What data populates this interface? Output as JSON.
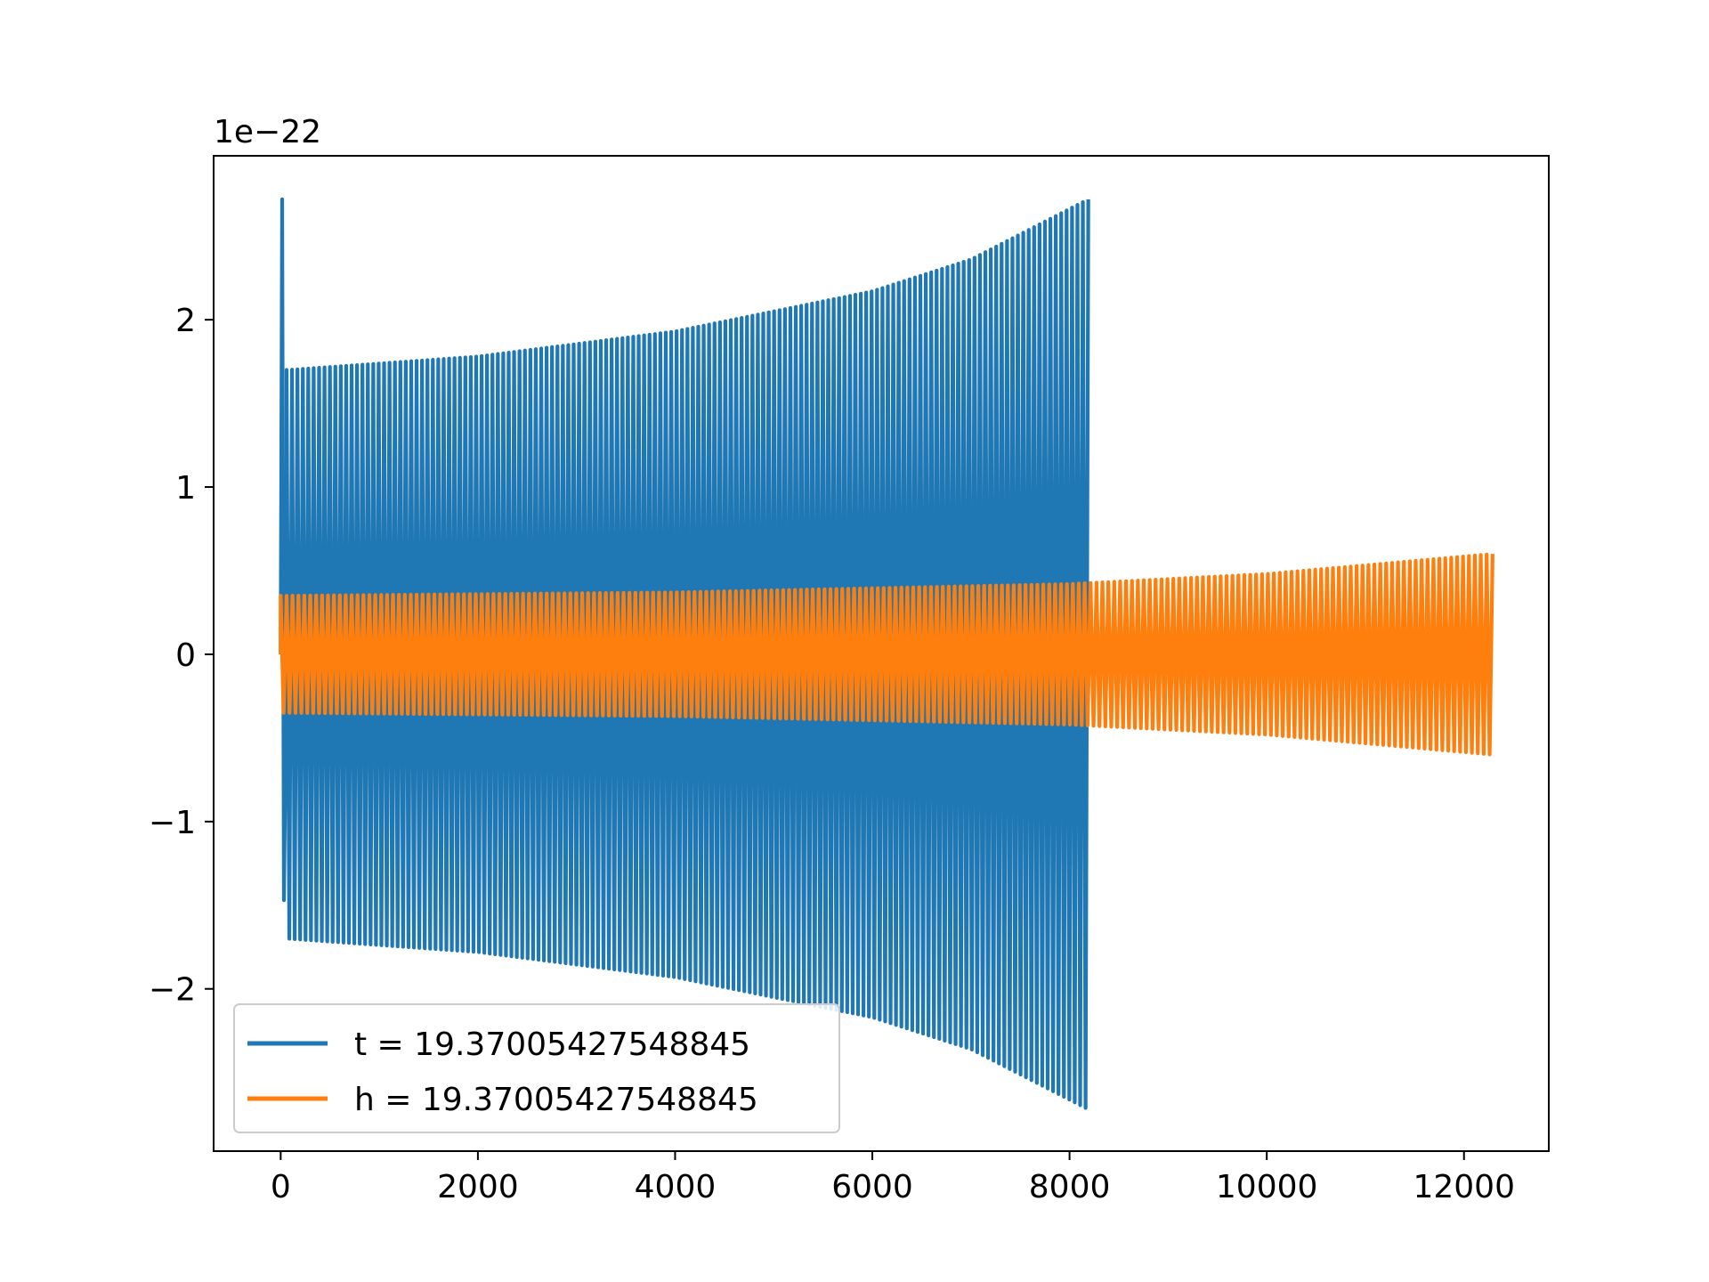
{
  "chart_data": {
    "type": "line",
    "title": "",
    "xlabel": "",
    "ylabel": "",
    "offset_text": "1e−22",
    "xlim": [
      -680,
      12860
    ],
    "ylim": [
      -2.97,
      2.98
    ],
    "x_ticks": [
      {
        "value": 0,
        "label": "0"
      },
      {
        "value": 2000,
        "label": "2000"
      },
      {
        "value": 4000,
        "label": "4000"
      },
      {
        "value": 6000,
        "label": "6000"
      },
      {
        "value": 8000,
        "label": "8000"
      },
      {
        "value": 10000,
        "label": "10000"
      },
      {
        "value": 12000,
        "label": "12000"
      }
    ],
    "y_ticks": [
      {
        "value": -2,
        "label": "−2"
      },
      {
        "value": -1,
        "label": "−1"
      },
      {
        "value": 0,
        "label": "0"
      },
      {
        "value": 1,
        "label": "1"
      },
      {
        "value": 2,
        "label": "2"
      }
    ],
    "grid": false,
    "legend_position": "lower-left",
    "series": [
      {
        "name": "t = 19.37005427548845",
        "color": "#1f77b4",
        "x_start": 0,
        "x_end": 8190,
        "cycles": 148,
        "initial_spike": [
          2.72,
          -1.47
        ],
        "envelope": [
          {
            "x": 80,
            "amp": 1.7
          },
          {
            "x": 2000,
            "amp": 1.78
          },
          {
            "x": 4000,
            "amp": 1.93
          },
          {
            "x": 6000,
            "amp": 2.17
          },
          {
            "x": 7000,
            "amp": 2.36
          },
          {
            "x": 8190,
            "amp": 2.72
          }
        ]
      },
      {
        "name": "h = 19.37005427548845",
        "color": "#ff7f0e",
        "x_start": 0,
        "x_end": 12290,
        "cycles": 205,
        "envelope": [
          {
            "x": 80,
            "amp": 0.35
          },
          {
            "x": 4000,
            "amp": 0.37
          },
          {
            "x": 8000,
            "amp": 0.42
          },
          {
            "x": 10000,
            "amp": 0.48
          },
          {
            "x": 12290,
            "amp": 0.6
          }
        ]
      }
    ]
  }
}
